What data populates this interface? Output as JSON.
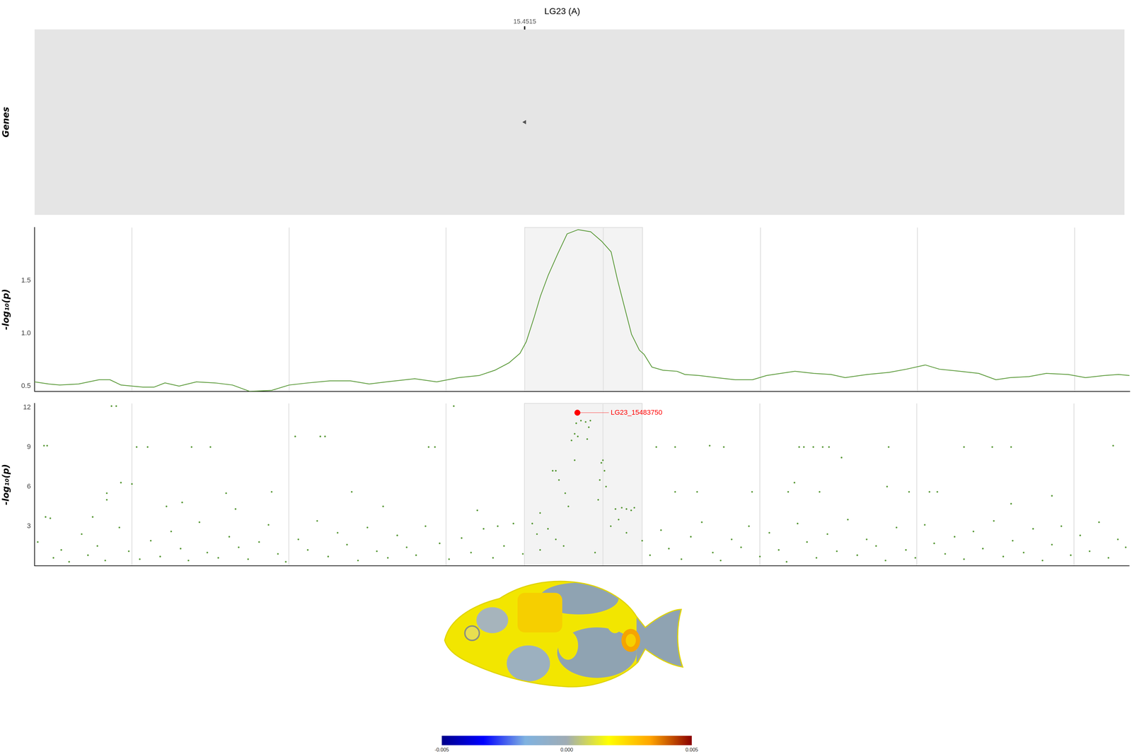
{
  "chart_data": [
    {
      "type": "gene_track",
      "title": "LG23 (A)",
      "y_label": "Genes",
      "xlim": [
        15.138,
        15.835
      ],
      "xticks": [
        {
          "value": 15.4515,
          "label": "15.4515"
        }
      ],
      "genes": {
        "x": [
          15.4515
        ],
        "marker": "triangle-left",
        "color": "#555555"
      },
      "grid": false
    },
    {
      "type": "line",
      "y_label": "-log₁₀(p)",
      "xlim": [
        15.138,
        15.835
      ],
      "ylim": [
        0.45,
        2.0
      ],
      "xticks": [
        15.2,
        15.3,
        15.4,
        15.5,
        15.6,
        15.7,
        15.8
      ],
      "yticks": [
        0.5,
        {
          "value": 1,
          "label": "1.0"
        },
        1.5
      ],
      "tick_labels": "y",
      "grid": "x",
      "highlight_region": [
        15.45,
        15.525
      ],
      "series": [
        {
          "color": "#5b9a3a",
          "line_style": "solid",
          "x": [
            15.138,
            15.147,
            15.154,
            15.166,
            15.179,
            15.186,
            15.193,
            15.207,
            15.214,
            15.221,
            15.23,
            15.241,
            15.253,
            15.264,
            15.275,
            15.289,
            15.3,
            15.312,
            15.326,
            15.339,
            15.351,
            15.362,
            15.38,
            15.394,
            15.408,
            15.421,
            15.431,
            15.44,
            15.447,
            15.451,
            15.456,
            15.46,
            15.465,
            15.471,
            15.477,
            15.484,
            15.492,
            15.499,
            15.505,
            15.509,
            15.514,
            15.518,
            15.523,
            15.526,
            15.531,
            15.538,
            15.547,
            15.552,
            15.561,
            15.572,
            15.584,
            15.595,
            15.604,
            15.613,
            15.622,
            15.634,
            15.645,
            15.654,
            15.668,
            15.682,
            15.693,
            15.705,
            15.714,
            15.727,
            15.739,
            15.75,
            15.759,
            15.771,
            15.782,
            15.796,
            15.807,
            15.819,
            15.828,
            15.835
          ],
          "values": [
            0.54,
            0.52,
            0.51,
            0.52,
            0.56,
            0.56,
            0.51,
            0.49,
            0.49,
            0.53,
            0.5,
            0.54,
            0.53,
            0.51,
            0.45,
            0.46,
            0.51,
            0.53,
            0.55,
            0.55,
            0.52,
            0.54,
            0.57,
            0.54,
            0.58,
            0.6,
            0.65,
            0.72,
            0.81,
            0.92,
            1.15,
            1.35,
            1.55,
            1.75,
            1.94,
            1.98,
            1.96,
            1.87,
            1.77,
            1.51,
            1.22,
            0.99,
            0.84,
            0.8,
            0.68,
            0.65,
            0.64,
            0.61,
            0.6,
            0.58,
            0.56,
            0.56,
            0.6,
            0.62,
            0.64,
            0.62,
            0.61,
            0.58,
            0.61,
            0.63,
            0.66,
            0.7,
            0.66,
            0.64,
            0.62,
            0.56,
            0.58,
            0.59,
            0.62,
            0.61,
            0.58,
            0.6,
            0.61,
            0.6
          ]
        }
      ]
    },
    {
      "type": "scatter",
      "y_label": "-log₁₀(p)",
      "xlim": [
        15.138,
        15.835
      ],
      "ylim": [
        0,
        12.3
      ],
      "xticks": [
        15.2,
        15.3,
        15.4,
        15.5,
        15.6,
        15.7,
        15.8
      ],
      "yticks": [
        3,
        6,
        9,
        12
      ],
      "tick_labels": "y",
      "grid": "x",
      "highlight_region": [
        15.45,
        15.525
      ],
      "highlight": {
        "label": "LG23_15483750",
        "x": 15.48375,
        "y": 11.6,
        "color": "#ff0000"
      },
      "series": [
        {
          "color": "#5b9a3a",
          "marker": "circle",
          "x": [
            15.14,
            15.144,
            15.145,
            15.146,
            15.148,
            15.15,
            15.155,
            15.16,
            15.168,
            15.172,
            15.175,
            15.178,
            15.183,
            15.184,
            15.184,
            15.187,
            15.19,
            15.192,
            15.193,
            15.198,
            15.2,
            15.203,
            15.205,
            15.21,
            15.212,
            15.218,
            15.222,
            15.225,
            15.231,
            15.232,
            15.236,
            15.238,
            15.243,
            15.248,
            15.25,
            15.255,
            15.26,
            15.262,
            15.266,
            15.268,
            15.274,
            15.281,
            15.287,
            15.289,
            15.293,
            15.298,
            15.304,
            15.306,
            15.312,
            15.318,
            15.32,
            15.323,
            15.325,
            15.331,
            15.337,
            15.34,
            15.344,
            15.35,
            15.356,
            15.36,
            15.363,
            15.369,
            15.375,
            15.381,
            15.387,
            15.389,
            15.393,
            15.396,
            15.402,
            15.405,
            15.41,
            15.416,
            15.42,
            15.424,
            15.43,
            15.433,
            15.437,
            15.443,
            15.449,
            15.455,
            15.458,
            15.46,
            15.46,
            15.465,
            15.468,
            15.47,
            15.47,
            15.472,
            15.475,
            15.476,
            15.478,
            15.48,
            15.482,
            15.482,
            15.483,
            15.484,
            15.486,
            15.489,
            15.49,
            15.491,
            15.492,
            15.495,
            15.497,
            15.498,
            15.499,
            15.5,
            15.501,
            15.502,
            15.505,
            15.508,
            15.51,
            15.512,
            15.515,
            15.515,
            15.518,
            15.52,
            15.525,
            15.53,
            15.534,
            15.537,
            15.542,
            15.546,
            15.546,
            15.55,
            15.556,
            15.56,
            15.563,
            15.568,
            15.57,
            15.575,
            15.577,
            15.582,
            15.588,
            15.593,
            15.595,
            15.6,
            15.606,
            15.612,
            15.617,
            15.618,
            15.622,
            15.624,
            15.625,
            15.628,
            15.63,
            15.634,
            15.636,
            15.638,
            15.64,
            15.643,
            15.644,
            15.649,
            15.652,
            15.656,
            15.662,
            15.668,
            15.674,
            15.68,
            15.681,
            15.682,
            15.687,
            15.693,
            15.695,
            15.699,
            15.705,
            15.708,
            15.711,
            15.713,
            15.718,
            15.724,
            15.73,
            15.73,
            15.736,
            15.742,
            15.748,
            15.749,
            15.755,
            15.76,
            15.76,
            15.761,
            15.768,
            15.774,
            15.78,
            15.786,
            15.786,
            15.792,
            15.798,
            15.804,
            15.81,
            15.816,
            15.822,
            15.825,
            15.828,
            15.833
          ],
          "values": [
            1.8,
            9.1,
            3.7,
            9.1,
            3.6,
            0.6,
            1.2,
            0.3,
            2.4,
            0.8,
            3.7,
            1.5,
            0.4,
            5.5,
            5.0,
            12.1,
            12.1,
            2.9,
            6.3,
            1.1,
            6.2,
            9.0,
            0.5,
            9.0,
            1.9,
            0.7,
            4.5,
            2.6,
            1.3,
            4.8,
            0.4,
            9.0,
            3.3,
            1.0,
            9.0,
            0.6,
            5.5,
            2.2,
            4.3,
            1.4,
            0.5,
            1.8,
            3.1,
            5.6,
            0.9,
            0.3,
            9.8,
            2.0,
            1.2,
            3.4,
            9.8,
            9.8,
            0.7,
            2.5,
            1.6,
            5.6,
            0.4,
            2.9,
            1.1,
            4.5,
            0.6,
            2.3,
            1.4,
            0.8,
            3.0,
            9.0,
            9.0,
            1.7,
            0.5,
            12.1,
            2.1,
            1.0,
            4.2,
            2.8,
            0.6,
            3.0,
            1.5,
            3.2,
            0.9,
            3.2,
            2.4,
            4.0,
            1.2,
            2.8,
            7.2,
            7.2,
            2.0,
            6.5,
            1.5,
            5.5,
            4.5,
            9.5,
            10.0,
            8.0,
            10.8,
            9.8,
            11.0,
            10.9,
            9.6,
            10.5,
            11.0,
            1.0,
            5.0,
            6.5,
            7.8,
            8.0,
            7.2,
            6.0,
            3.0,
            4.3,
            3.5,
            4.4,
            4.3,
            2.5,
            4.2,
            4.4,
            1.9,
            0.8,
            9.0,
            2.7,
            1.3,
            9.0,
            5.6,
            0.5,
            2.2,
            5.6,
            3.3,
            9.1,
            1.0,
            0.4,
            9.0,
            2.0,
            1.4,
            3.0,
            5.6,
            0.7,
            2.5,
            1.2,
            0.3,
            5.6,
            6.3,
            3.2,
            9.0,
            9.0,
            1.8,
            9.0,
            0.6,
            5.6,
            9.0,
            2.4,
            9.0,
            1.1,
            8.2,
            3.5,
            0.8,
            2.0,
            1.5,
            0.4,
            6.0,
            9.0,
            2.9,
            1.2,
            5.6,
            0.6,
            3.1,
            5.6,
            1.7,
            5.6,
            0.9,
            2.2,
            9.0,
            0.5,
            2.6,
            1.3,
            9.0,
            3.4,
            0.7,
            9.0,
            4.7,
            1.9,
            1.0,
            2.8,
            0.4,
            5.3,
            1.6,
            3.0,
            0.8,
            2.3,
            1.1,
            3.3,
            0.6,
            9.1,
            2.0,
            1.4
          ]
        }
      ]
    },
    {
      "type": "colorbar",
      "range": [
        -0.005,
        0.005
      ],
      "ticks": [
        -0.005,
        {
          "value": 0,
          "label": "0.000"
        },
        0.005
      ],
      "colors": [
        "#00008b",
        "#0000ff",
        "#7fb2e0",
        "#a0acb4",
        "#ffff00",
        "#ffa500",
        "#8b0000"
      ]
    }
  ]
}
